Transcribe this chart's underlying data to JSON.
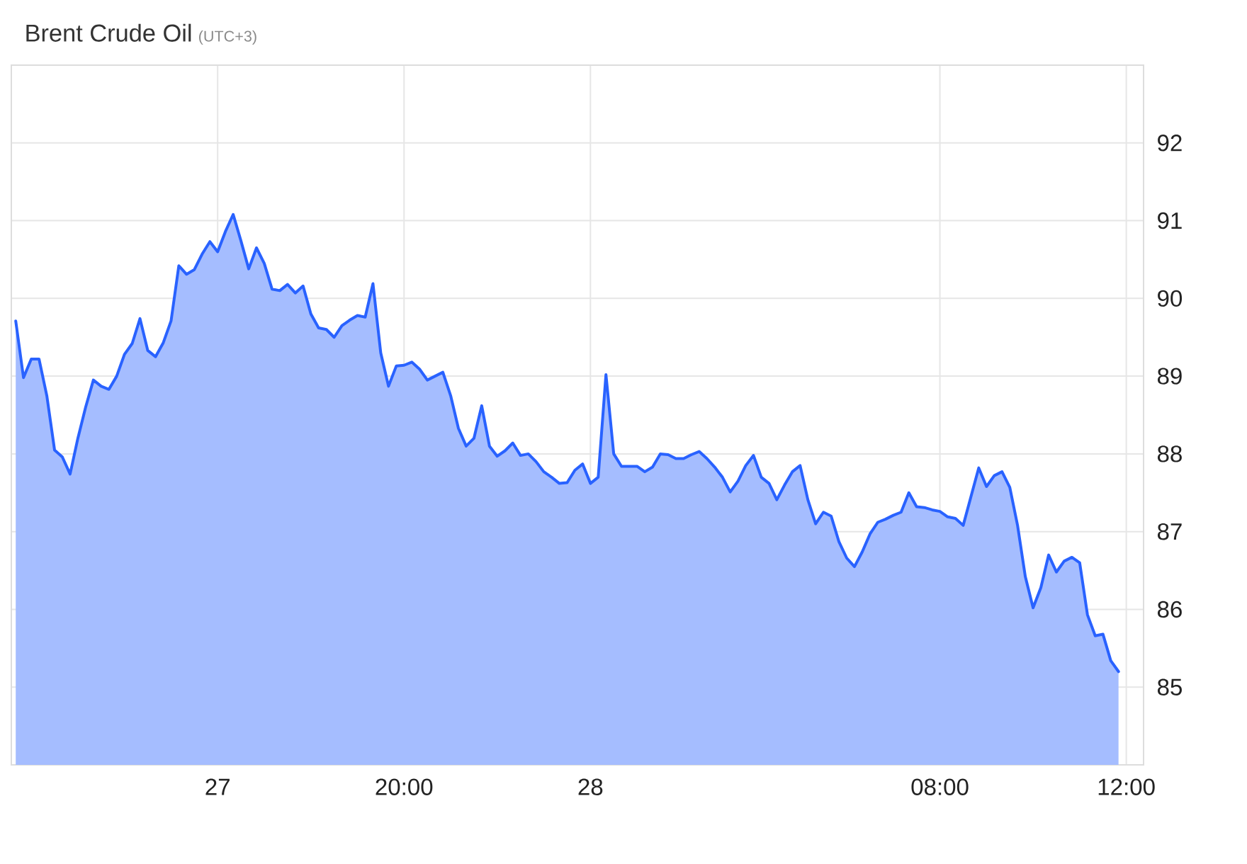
{
  "chart_data": {
    "type": "area",
    "title": "Brent Crude Oil",
    "subtitle": "(UTC+3)",
    "categories": [
      null,
      null,
      null,
      null,
      null,
      null,
      null,
      null,
      null,
      null,
      null,
      null,
      null,
      null,
      null,
      null,
      null,
      null,
      null,
      null,
      null,
      null,
      null,
      null,
      null,
      null,
      "27",
      null,
      null,
      null,
      null,
      null,
      null,
      null,
      null,
      null,
      null,
      null,
      null,
      null,
      null,
      null,
      null,
      null,
      null,
      null,
      null,
      null,
      null,
      null,
      "20:00",
      null,
      null,
      null,
      null,
      null,
      null,
      null,
      null,
      null,
      null,
      null,
      null,
      null,
      null,
      null,
      null,
      null,
      null,
      null,
      null,
      null,
      null,
      null,
      "28",
      null,
      null,
      null,
      null,
      null,
      null,
      null,
      null,
      null,
      null,
      null,
      null,
      null,
      null,
      null,
      null,
      null,
      null,
      null,
      null,
      null,
      null,
      null,
      null,
      null,
      null,
      null,
      null,
      null,
      null,
      null,
      null,
      null,
      null,
      null,
      null,
      null,
      null,
      null,
      null,
      null,
      null,
      null,
      null,
      "08:00",
      null,
      null,
      null,
      null,
      null,
      null,
      null,
      null,
      null,
      null,
      null,
      null,
      null,
      null,
      null,
      null,
      null,
      null,
      null,
      null,
      null,
      null,
      null,
      "12:00"
    ],
    "values": [
      89.71,
      88.98,
      89.22,
      89.22,
      88.75,
      88.05,
      87.96,
      87.74,
      88.2,
      88.6,
      88.95,
      88.87,
      88.83,
      89.0,
      89.28,
      89.42,
      89.74,
      89.33,
      89.25,
      89.43,
      89.71,
      90.42,
      90.31,
      90.37,
      90.57,
      90.73,
      90.6,
      90.86,
      91.08,
      90.74,
      90.38,
      90.65,
      90.45,
      90.12,
      90.1,
      90.18,
      90.07,
      90.16,
      89.8,
      89.62,
      89.6,
      89.5,
      89.65,
      89.72,
      89.78,
      89.76,
      90.19,
      89.3,
      88.87,
      89.13,
      89.14,
      89.18,
      89.09,
      88.95,
      89.0,
      89.05,
      88.75,
      88.33,
      88.1,
      88.2,
      88.62,
      88.1,
      87.97,
      88.04,
      88.14,
      87.98,
      88.0,
      87.9,
      87.77,
      87.7,
      87.62,
      87.63,
      87.79,
      87.87,
      87.62,
      87.7,
      89.02,
      88.0,
      87.84,
      87.84,
      87.84,
      87.77,
      87.83,
      88.0,
      87.99,
      87.94,
      87.94,
      87.99,
      88.03,
      87.94,
      87.83,
      87.7,
      87.51,
      87.65,
      87.85,
      87.98,
      87.7,
      87.62,
      87.41,
      87.6,
      87.77,
      87.85,
      87.41,
      87.1,
      87.25,
      87.2,
      86.87,
      86.66,
      86.55,
      86.74,
      86.97,
      87.12,
      87.16,
      87.21,
      87.25,
      87.5,
      87.32,
      87.31,
      87.28,
      87.26,
      87.19,
      87.17,
      87.08,
      87.45,
      87.82,
      87.58,
      87.72,
      87.77,
      87.57,
      87.08,
      86.42,
      86.02,
      86.28,
      86.7,
      86.48,
      86.62,
      86.67,
      86.6,
      85.93,
      85.66,
      85.68,
      85.34,
      85.2,
      null
    ],
    "color": "#2962ff",
    "ylim": [
      84,
      93
    ],
    "yticks": [
      85,
      86,
      87,
      88,
      89,
      90,
      91,
      92
    ],
    "grid": true
  }
}
